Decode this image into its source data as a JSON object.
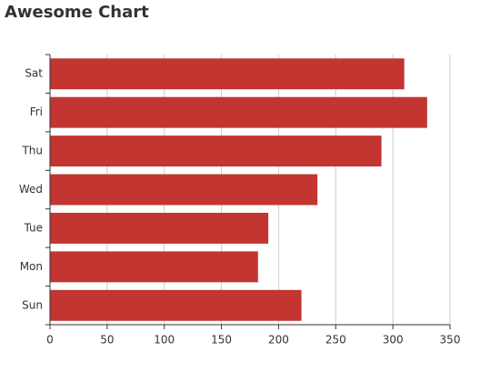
{
  "chart_data": {
    "type": "bar",
    "orientation": "horizontal",
    "title": "Awesome Chart",
    "categories": [
      "Sun",
      "Mon",
      "Tue",
      "Wed",
      "Thu",
      "Fri",
      "Sat"
    ],
    "values": [
      220,
      182,
      191,
      234,
      290,
      330,
      310
    ],
    "color": "#c23531",
    "xlim": [
      0,
      350
    ],
    "xticks": [
      0,
      50,
      100,
      150,
      200,
      250,
      300,
      350
    ],
    "grid": true
  }
}
